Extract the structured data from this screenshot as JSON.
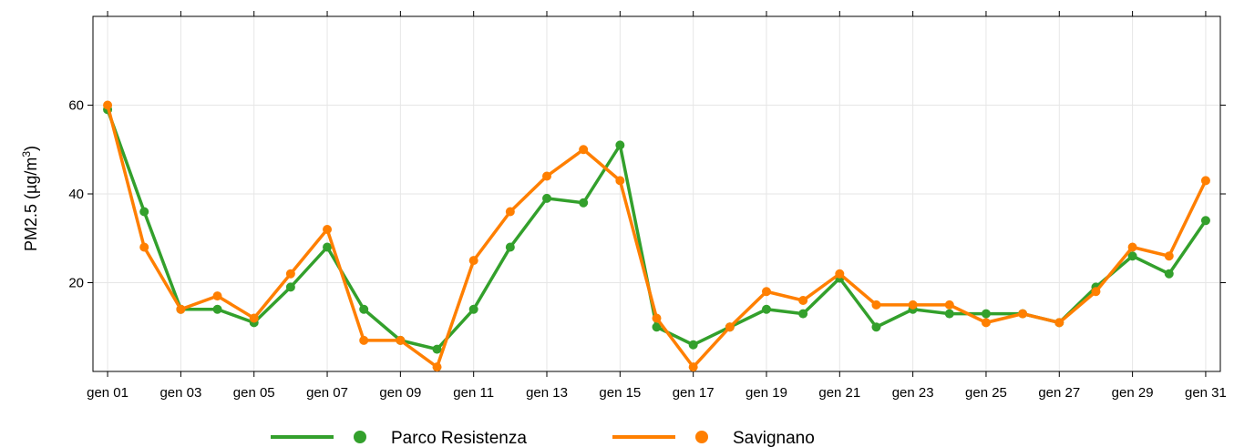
{
  "chart_data": {
    "type": "line",
    "ylabel": "PM2.5 (µg/m³)",
    "ylabel_parts": {
      "main": "PM2.5 (",
      "unit": "µg/m",
      "sup": "3",
      "close": ")"
    },
    "xlim": [
      0.6,
      31.4
    ],
    "ylim": [
      0,
      80
    ],
    "yticks": [
      20,
      40,
      60
    ],
    "x": [
      1,
      2,
      3,
      4,
      5,
      6,
      7,
      8,
      9,
      10,
      11,
      12,
      13,
      14,
      15,
      16,
      17,
      18,
      19,
      20,
      21,
      22,
      23,
      24,
      25,
      26,
      27,
      28,
      29,
      30,
      31
    ],
    "xticks": [
      {
        "x": 1,
        "label": "gen 01"
      },
      {
        "x": 3,
        "label": "gen 03"
      },
      {
        "x": 5,
        "label": "gen 05"
      },
      {
        "x": 7,
        "label": "gen 07"
      },
      {
        "x": 9,
        "label": "gen 09"
      },
      {
        "x": 11,
        "label": "gen 11"
      },
      {
        "x": 13,
        "label": "gen 13"
      },
      {
        "x": 15,
        "label": "gen 15"
      },
      {
        "x": 17,
        "label": "gen 17"
      },
      {
        "x": 19,
        "label": "gen 19"
      },
      {
        "x": 21,
        "label": "gen 21"
      },
      {
        "x": 23,
        "label": "gen 23"
      },
      {
        "x": 25,
        "label": "gen 25"
      },
      {
        "x": 27,
        "label": "gen 27"
      },
      {
        "x": 29,
        "label": "gen 29"
      },
      {
        "x": 31,
        "label": "gen 31"
      }
    ],
    "grid": true,
    "legend_position": "bottom",
    "series": [
      {
        "name": "Parco Resistenza",
        "color": "#33a02c",
        "values": [
          59,
          36,
          14,
          14,
          11,
          19,
          28,
          14,
          7,
          5,
          14,
          28,
          39,
          38,
          51,
          10,
          6,
          10,
          14,
          13,
          21,
          10,
          14,
          13,
          13,
          13,
          11,
          19,
          26,
          22,
          34
        ]
      },
      {
        "name": "Savignano",
        "color": "#ff7f00",
        "values": [
          60,
          28,
          14,
          17,
          12,
          22,
          32,
          7,
          7,
          1,
          25,
          36,
          44,
          50,
          43,
          12,
          1,
          10,
          18,
          16,
          22,
          15,
          15,
          15,
          11,
          13,
          11,
          18,
          28,
          26,
          43
        ]
      }
    ]
  }
}
